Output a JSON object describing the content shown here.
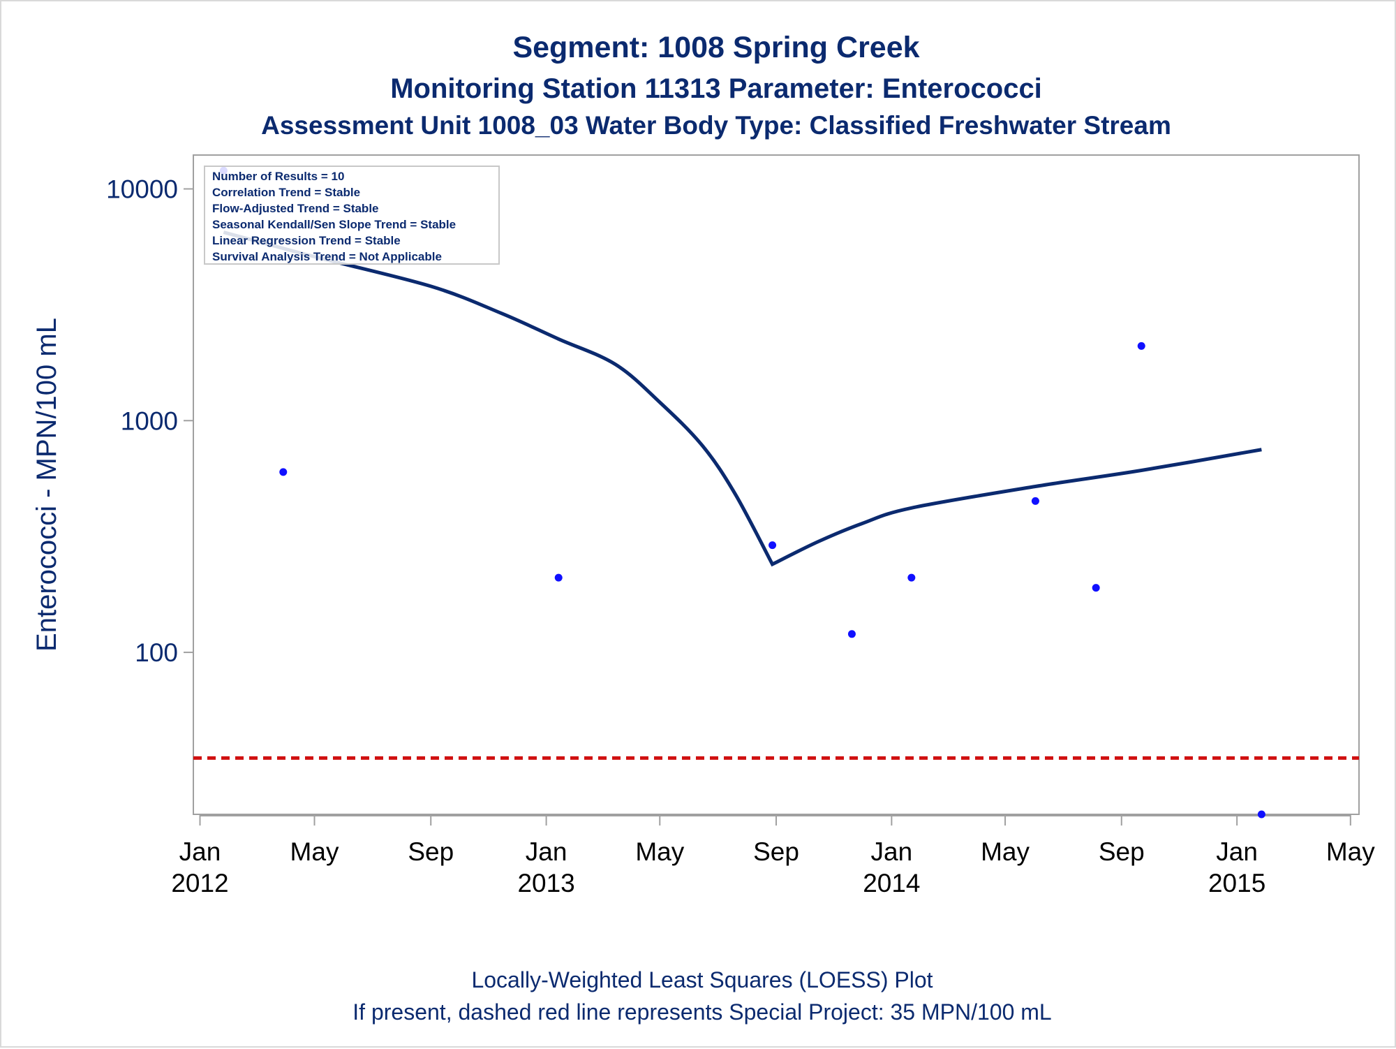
{
  "colors": {
    "title": "#0b2a6f",
    "axis": "#a0a0a0",
    "points": "#1010ff",
    "loess": "#0b2a6f",
    "reference": "#d01010"
  },
  "chart_data": {
    "type": "scatter",
    "title": "Segment: 1008  Spring Creek",
    "subtitle": "Monitoring Station 11313 Parameter: Enterococci",
    "subtitle2": "Assessment Unit 1008_03   Water Body Type: Classified Freshwater Stream",
    "ylabel": "Enterococci - MPN/100 mL",
    "xlabel": "",
    "y_scale": "log",
    "ylim": [
      20,
      14000
    ],
    "xlim": [
      "2011-12-25",
      "2015-05-10"
    ],
    "y_ticks": [
      100,
      1000,
      10000
    ],
    "y_tick_labels": [
      "100",
      "1000",
      "10000"
    ],
    "x_ticks": [
      {
        "date": "2012-01-01",
        "label": "Jan",
        "year": "2012"
      },
      {
        "date": "2012-05-01",
        "label": "May",
        "year": ""
      },
      {
        "date": "2012-09-01",
        "label": "Sep",
        "year": ""
      },
      {
        "date": "2013-01-01",
        "label": "Jan",
        "year": "2013"
      },
      {
        "date": "2013-05-01",
        "label": "May",
        "year": ""
      },
      {
        "date": "2013-09-01",
        "label": "Sep",
        "year": ""
      },
      {
        "date": "2014-01-01",
        "label": "Jan",
        "year": "2014"
      },
      {
        "date": "2014-05-01",
        "label": "May",
        "year": ""
      },
      {
        "date": "2014-09-01",
        "label": "Sep",
        "year": ""
      },
      {
        "date": "2015-01-01",
        "label": "Jan",
        "year": "2015"
      },
      {
        "date": "2015-05-01",
        "label": "May",
        "year": ""
      }
    ],
    "series": [
      {
        "kind": "points",
        "points": [
          {
            "x": "2012-01-26",
            "y": 12000
          },
          {
            "x": "2012-03-29",
            "y": 600
          },
          {
            "x": "2013-01-14",
            "y": 210
          },
          {
            "x": "2013-08-28",
            "y": 290
          },
          {
            "x": "2013-11-20",
            "y": 120
          },
          {
            "x": "2014-01-22",
            "y": 210
          },
          {
            "x": "2014-06-02",
            "y": 450
          },
          {
            "x": "2014-08-05",
            "y": 190
          },
          {
            "x": "2014-09-22",
            "y": 2100
          },
          {
            "x": "2015-01-27",
            "y": 20
          }
        ]
      },
      {
        "kind": "loess",
        "points": [
          {
            "x": "2012-01-26",
            "y": 6500
          },
          {
            "x": "2012-05-01",
            "y": 5100
          },
          {
            "x": "2012-09-01",
            "y": 3800
          },
          {
            "x": "2012-11-15",
            "y": 2900
          },
          {
            "x": "2013-01-14",
            "y": 2250
          },
          {
            "x": "2013-03-15",
            "y": 1750
          },
          {
            "x": "2013-05-01",
            "y": 1200
          },
          {
            "x": "2013-06-15",
            "y": 780
          },
          {
            "x": "2013-07-20",
            "y": 480
          },
          {
            "x": "2013-08-28",
            "y": 240
          },
          {
            "x": "2013-10-15",
            "y": 300
          },
          {
            "x": "2013-12-01",
            "y": 360
          },
          {
            "x": "2014-01-22",
            "y": 420
          },
          {
            "x": "2014-06-02",
            "y": 520
          },
          {
            "x": "2014-09-22",
            "y": 610
          },
          {
            "x": "2015-01-27",
            "y": 750
          }
        ]
      }
    ],
    "reference_line": {
      "y": 35,
      "style": "dashed"
    },
    "inset": [
      "Number of Results = 10",
      "Correlation Trend = Stable",
      "Flow-Adjusted Trend = Stable",
      "Seasonal Kendall/Sen Slope Trend = Stable",
      "Linear Regression Trend = Stable",
      "Survival Analysis Trend = Not Applicable"
    ],
    "footnotes": [
      "Locally-Weighted Least Squares (LOESS) Plot",
      "If present, dashed red line represents Special Project: 35 MPN/100 mL"
    ]
  }
}
